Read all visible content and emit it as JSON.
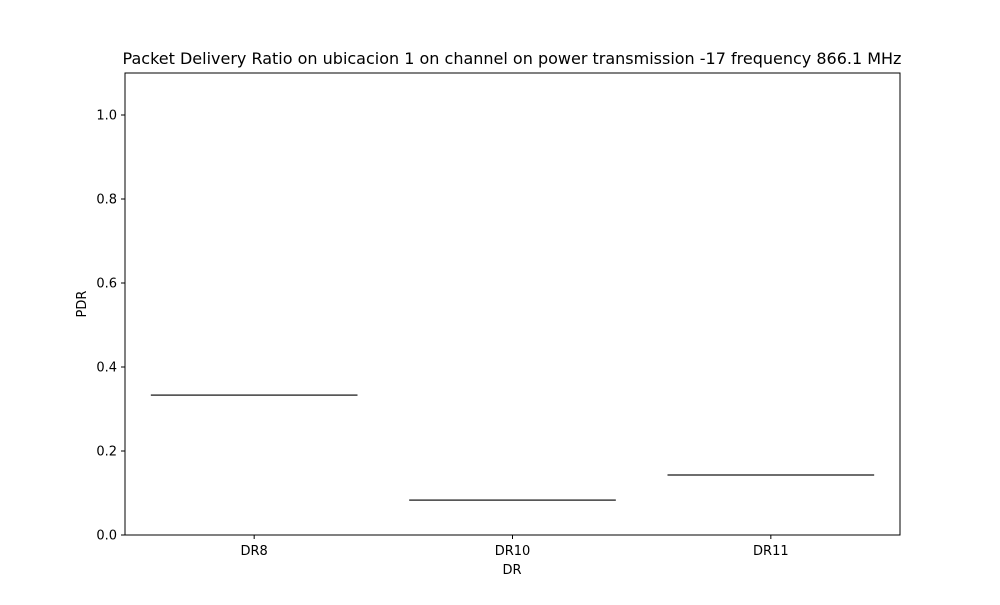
{
  "chart_data": {
    "type": "box",
    "title": "Packet Delivery Ratio on ubicacion 1 on channel on power transmission -17 frequency 866.1 MHz",
    "xlabel": "DR",
    "ylabel": "PDR",
    "ylim": [
      0.0,
      1.1
    ],
    "yticks": [
      0.0,
      0.2,
      0.4,
      0.6,
      0.8,
      1.0
    ],
    "ytick_labels": [
      "0.0",
      "0.2",
      "0.4",
      "0.6",
      "0.8",
      "1.0"
    ],
    "categories": [
      "DR8",
      "DR10",
      "DR11"
    ],
    "values": [
      0.333,
      0.083,
      0.143
    ],
    "grid": false,
    "legend": "none",
    "colors": {
      "box_line": "#3f3f3f",
      "axis": "#000000",
      "background": "#ffffff"
    }
  }
}
